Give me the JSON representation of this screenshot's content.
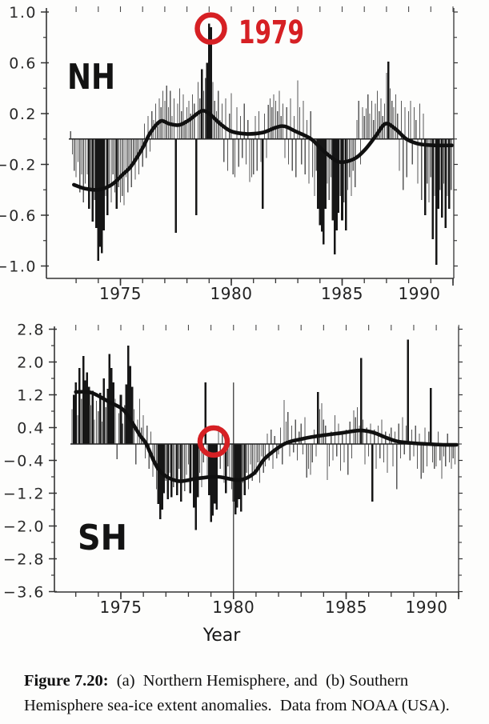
{
  "colors": {
    "paper": "#fdfdfc",
    "ink": "#1a1a1a",
    "axis": "#333333",
    "bar_thin": "#585858",
    "bar_bold": "#161616",
    "curve": "#101010",
    "annotation_red": "#d62024"
  },
  "caption": {
    "label": "Figure 7.20:",
    "line1_rest": "  (a)  Northern Hemisphere, and  (b) Southern",
    "line2": "Hemisphere sea-ice extent anomalies.  Data from NOAA (USA)."
  },
  "chart_data": [
    {
      "id": "nh",
      "panel": "a",
      "type": "bar+line",
      "hemisphere_label": "NH",
      "title": "Northern Hemisphere sea-ice extent anomalies",
      "xlabel": "",
      "x_domain": [
        1971.65,
        1990.05
      ],
      "y_domain": [
        -1.1,
        1.04
      ],
      "x_ticks": [
        {
          "year": 1975,
          "label": "1975"
        },
        {
          "year": 1980,
          "label": "1980"
        },
        {
          "year": 1985,
          "label": "1985"
        },
        {
          "year": 1990,
          "label": "1990",
          "dx": -42
        }
      ],
      "x_minor_years": [
        1973,
        1974,
        1975,
        1976,
        1977,
        1978,
        1979,
        1980,
        1981,
        1982,
        1983,
        1984,
        1985,
        1986,
        1987,
        1988,
        1989,
        1990
      ],
      "y_ticks": [
        {
          "v": 1.0,
          "label": "1.0"
        },
        {
          "v": 0.6,
          "label": "0.6"
        },
        {
          "v": 0.2,
          "label": "0.2"
        },
        {
          "v": -0.2,
          "label": "-0.2"
        },
        {
          "v": -0.6,
          "label": "-0.6"
        },
        {
          "v": -1.0,
          "label": "-1.0"
        }
      ],
      "y_minor": [
        0.8,
        0.4,
        0.0,
        -0.4,
        -0.8
      ],
      "zero_line": true,
      "smoothed_line": [
        [
          1972.9,
          -0.36
        ],
        [
          1973.4,
          -0.39
        ],
        [
          1974.0,
          -0.4
        ],
        [
          1974.6,
          -0.36
        ],
        [
          1975.1,
          -0.28
        ],
        [
          1975.5,
          -0.21
        ],
        [
          1976.0,
          -0.07
        ],
        [
          1976.35,
          0.05
        ],
        [
          1976.8,
          0.14
        ],
        [
          1977.2,
          0.12
        ],
        [
          1977.65,
          0.11
        ],
        [
          1978.1,
          0.15
        ],
        [
          1978.65,
          0.22
        ],
        [
          1979.0,
          0.2
        ],
        [
          1979.5,
          0.12
        ],
        [
          1980.0,
          0.06
        ],
        [
          1980.7,
          0.04
        ],
        [
          1981.4,
          0.05
        ],
        [
          1982.0,
          0.09
        ],
        [
          1982.4,
          0.1
        ],
        [
          1982.9,
          0.06
        ],
        [
          1983.6,
          0.0
        ],
        [
          1984.2,
          -0.1
        ],
        [
          1984.85,
          -0.18
        ],
        [
          1985.5,
          -0.16
        ],
        [
          1986.0,
          -0.09
        ],
        [
          1986.5,
          0.02
        ],
        [
          1986.95,
          0.12
        ],
        [
          1987.4,
          0.08
        ],
        [
          1987.9,
          0.0
        ],
        [
          1988.5,
          -0.04
        ],
        [
          1989.2,
          -0.05
        ],
        [
          1989.95,
          -0.05
        ]
      ],
      "bars": {
        "start_year": 1972.75,
        "step_years": 0.083333,
        "bold_threshold": 0.55,
        "values": [
          0.06,
          -0.12,
          -0.25,
          -0.3,
          -0.18,
          -0.42,
          -0.28,
          -0.5,
          -0.35,
          -0.28,
          -0.55,
          -0.4,
          -0.65,
          -0.48,
          -0.7,
          -0.96,
          -0.85,
          -0.9,
          -0.72,
          -0.45,
          -0.6,
          -0.35,
          -0.5,
          -0.28,
          -0.42,
          -0.55,
          -0.38,
          -0.5,
          -0.45,
          -0.52,
          -0.3,
          -0.42,
          -0.25,
          -0.38,
          -0.2,
          -0.32,
          -0.15,
          -0.28,
          -0.1,
          -0.22,
          0.12,
          -0.15,
          0.18,
          -0.1,
          0.22,
          0.15,
          0.28,
          0.1,
          0.32,
          0.25,
          0.38,
          0.3,
          0.42,
          0.25,
          0.38,
          0.18,
          0.32,
          -0.74,
          0.28,
          0.4,
          0.22,
          0.35,
          0.15,
          0.25,
          0.3,
          0.2,
          0.35,
          0.28,
          -0.6,
          0.45,
          0.32,
          0.55,
          0.38,
          0.48,
          0.6,
          0.91,
          0.88,
          0.45,
          0.3,
          0.22,
          0.38,
          0.15,
          0.28,
          -0.18,
          0.32,
          -0.25,
          0.2,
          0.36,
          -0.28,
          -0.3,
          0.25,
          -0.22,
          0.18,
          -0.15,
          0.28,
          -0.2,
          0.15,
          -0.34,
          -0.3,
          -0.28,
          0.18,
          -0.25,
          0.22,
          -0.18,
          -0.55,
          0.2,
          -0.15,
          0.27,
          0.32,
          0.25,
          0.35,
          0.3,
          0.22,
          0.38,
          0.18,
          0.28,
          -0.15,
          0.25,
          -0.2,
          0.32,
          -0.25,
          0.18,
          -0.3,
          0.46,
          0.25,
          -0.2,
          0.3,
          -0.28,
          0.15,
          -0.35,
          0.22,
          -0.3,
          -0.45,
          -0.25,
          -0.55,
          -0.68,
          -0.73,
          -0.83,
          -0.55,
          -0.35,
          -0.48,
          -0.3,
          -0.64,
          -0.91,
          -0.72,
          -0.58,
          -0.45,
          -0.64,
          -0.5,
          -0.72,
          -0.4,
          -0.3,
          -0.45,
          -0.25,
          -0.38,
          0.15,
          0.3,
          -0.2,
          0.25,
          0.18,
          0.24,
          0.35,
          0.2,
          0.3,
          0.15,
          0.28,
          0.38,
          0.22,
          0.32,
          0.18,
          0.28,
          0.52,
          0.61,
          0.4,
          0.3,
          0.25,
          0.35,
          0.2,
          -0.25,
          0.3,
          -0.4,
          0.25,
          -0.3,
          0.22,
          0.3,
          -0.2,
          0.25,
          0.15,
          -0.35,
          0.28,
          -0.48,
          0.2,
          -0.6,
          -0.35,
          -0.5,
          -0.3,
          -0.79,
          -0.45,
          -0.99,
          -0.55,
          -0.4,
          -0.62,
          -0.35,
          -0.7,
          -0.45,
          -0.55,
          -0.4
        ]
      },
      "annotations": {
        "circle": {
          "year": 1979.08,
          "value": 0.87,
          "radius_px": 17
        },
        "year_label": {
          "text": "1979",
          "year": 1980.32,
          "value": 0.85
        }
      }
    },
    {
      "id": "sh",
      "panel": "b",
      "type": "bar+line",
      "hemisphere_label": "SH",
      "title": "Southern Hemisphere sea-ice extent anomalies",
      "xlabel": "Year",
      "x_domain": [
        1972.05,
        1989.95
      ],
      "y_domain": [
        -3.65,
        2.85
      ],
      "x_ticks": [
        {
          "year": 1975,
          "label": "1975"
        },
        {
          "year": 1980,
          "label": "1980"
        },
        {
          "year": 1985,
          "label": "1985"
        },
        {
          "year": 1990,
          "label": "1990",
          "dx": -40
        }
      ],
      "x_minor_years": [
        1973,
        1974,
        1975,
        1976,
        1977,
        1978,
        1979,
        1980,
        1981,
        1982,
        1983,
        1984,
        1985,
        1986,
        1987,
        1988,
        1989,
        1990
      ],
      "y_ticks": [
        {
          "v": 2.8,
          "label": "2.8"
        },
        {
          "v": 2.0,
          "label": "2.0"
        },
        {
          "v": 1.2,
          "label": "1.2"
        },
        {
          "v": 0.4,
          "label": "0.4"
        },
        {
          "v": -0.4,
          "label": "-0.4"
        },
        {
          "v": -1.2,
          "label": "-1.2"
        },
        {
          "v": -2.0,
          "label": "-2.0"
        },
        {
          "v": -2.8,
          "label": "-2.8"
        },
        {
          "v": -3.6,
          "label": "-3.6"
        }
      ],
      "y_minor": [
        2.4,
        1.6,
        0.8,
        0.0,
        -0.8,
        -1.6,
        -2.4,
        -3.2
      ],
      "zero_line": true,
      "artifact_line": {
        "year": 1980.0,
        "top_value": 1.5,
        "bottom_value": -3.62
      },
      "smoothed_line": [
        [
          1973.0,
          1.27
        ],
        [
          1973.7,
          1.25
        ],
        [
          1974.5,
          1.02
        ],
        [
          1975.0,
          0.88
        ],
        [
          1975.3,
          0.7
        ],
        [
          1975.85,
          0.21
        ],
        [
          1976.13,
          0.0
        ],
        [
          1976.7,
          -0.64
        ],
        [
          1977.5,
          -0.9
        ],
        [
          1978.4,
          -0.84
        ],
        [
          1979.3,
          -0.8
        ],
        [
          1980.25,
          -0.88
        ],
        [
          1980.9,
          -0.72
        ],
        [
          1981.4,
          -0.35
        ],
        [
          1982.25,
          0.0
        ],
        [
          1983.0,
          0.12
        ],
        [
          1983.8,
          0.2
        ],
        [
          1984.8,
          0.27
        ],
        [
          1985.6,
          0.33
        ],
        [
          1986.2,
          0.28
        ],
        [
          1986.8,
          0.15
        ],
        [
          1987.3,
          0.06
        ],
        [
          1988.0,
          0.02
        ],
        [
          1988.6,
          0.0
        ],
        [
          1989.3,
          -0.02
        ],
        [
          1989.9,
          -0.02
        ]
      ],
      "bars": {
        "start_year": 1972.833,
        "step_years": 0.083333,
        "bold_threshold": 1.2,
        "values": [
          0.85,
          1.2,
          1.5,
          0.7,
          1.85,
          1.1,
          2.15,
          1.55,
          1.75,
          1.4,
          0.95,
          1.3,
          0.6,
          1.05,
          0.8,
          1.25,
          0.55,
          1.6,
          0.9,
          1.35,
          2.2,
          1.85,
          1.5,
          1.1,
          -0.37,
          0.75,
          1.2,
          0.5,
          0.95,
          1.45,
          2.4,
          1.9,
          1.4,
          0.85,
          -0.5,
          0.6,
          1.1,
          0.4,
          0.7,
          -0.35,
          0.45,
          -0.6,
          0.3,
          -0.8,
          -0.45,
          -1.1,
          -1.46,
          -1.83,
          -1.6,
          -1.2,
          -0.9,
          -1.35,
          -0.7,
          -1.3,
          -1.05,
          -0.85,
          -1.25,
          -0.6,
          -1.4,
          -0.95,
          -1.15,
          -0.75,
          -0.5,
          -1.2,
          -0.85,
          -1.55,
          -2.1,
          -1.3,
          -0.7,
          -1.05,
          -0.45,
          1.5,
          -0.8,
          -1.25,
          -1.9,
          -1.75,
          -1.45,
          -1.6,
          0.45,
          -0.6,
          0.3,
          -0.95,
          -1.2,
          -0.55,
          -0.85,
          -1.1,
          -1.4,
          -1.72,
          -1.55,
          -1.35,
          -1.65,
          -0.95,
          -1.25,
          -0.7,
          -1.1,
          -0.5,
          -0.9,
          -0.65,
          -0.75,
          -0.45,
          -0.95,
          -0.3,
          -0.7,
          -0.55,
          0.25,
          -0.4,
          0.35,
          -0.6,
          0.2,
          -0.35,
          -0.25,
          0.4,
          -0.5,
          1.07,
          0.55,
          0.78,
          -0.3,
          0.45,
          -0.2,
          0.6,
          -0.4,
          0.3,
          0.5,
          -0.25,
          0.65,
          -0.82,
          -0.6,
          -0.75,
          -0.45,
          0.35,
          -0.3,
          1.27,
          0.85,
          1.0,
          0.6,
          0.45,
          -0.88,
          -0.55,
          0.3,
          -0.4,
          0.7,
          -0.3,
          0.5,
          -0.65,
          0.25,
          -0.45,
          0.35,
          -0.75,
          0.55,
          -0.35,
          0.82,
          0.65,
          0.9,
          0.45,
          2.1,
          0.6,
          -0.5,
          0.4,
          -0.3,
          0.5,
          -1.4,
          0.35,
          -0.6,
          0.45,
          -0.35,
          0.6,
          -0.45,
          0.3,
          -0.7,
          0.25,
          0.4,
          -0.55,
          0.3,
          -1.1,
          0.5,
          -0.35,
          0.65,
          -0.25,
          0.45,
          2.55,
          -0.4,
          0.35,
          -0.3,
          0.45,
          -0.6,
          0.25,
          -0.85,
          -0.7,
          0.4,
          -0.55,
          0.3,
          1.37,
          -0.45,
          -0.6,
          -0.55,
          0.3,
          -0.4,
          -0.85,
          -0.3,
          -0.55,
          0.25,
          -0.45,
          -0.6,
          -0.35,
          -0.5
        ]
      },
      "annotations": {
        "circle": {
          "year": 1979.12,
          "value": 0.06,
          "radius_px": 17
        }
      }
    }
  ]
}
